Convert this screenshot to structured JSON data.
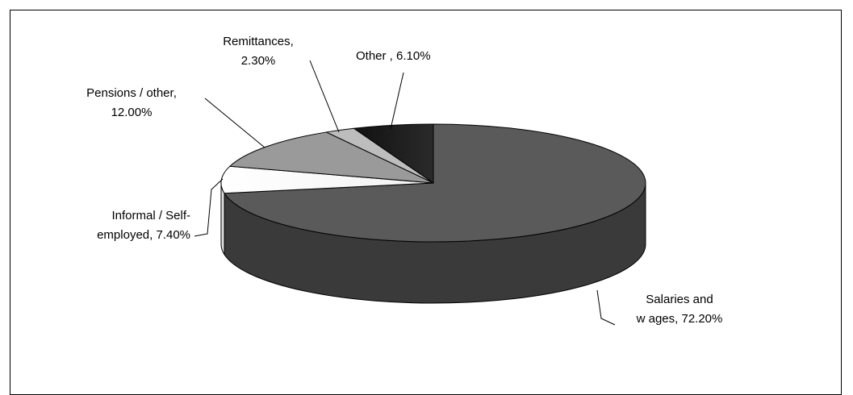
{
  "chart_data": {
    "type": "pie",
    "title": "",
    "three_d": true,
    "slices": [
      {
        "label_lines": [
          "Salaries and",
          "w ages, 72.20%"
        ],
        "name": "Salaries and wages",
        "value": 72.2,
        "color": "#5a5a5a"
      },
      {
        "label_lines": [
          "Informal / Self-",
          "employed, 7.40%"
        ],
        "name": "Informal / Self-employed",
        "value": 7.4,
        "color": "#ffffff"
      },
      {
        "label_lines": [
          "Pensions / other,",
          "12.00%"
        ],
        "name": "Pensions / other",
        "value": 12.0,
        "color": "#9a9a9a"
      },
      {
        "label_lines": [
          "Remittances,",
          "2.30%"
        ],
        "name": "Remittances",
        "value": 2.3,
        "color": "#bdbdbd"
      },
      {
        "label_lines": [
          "Other , 6.10%"
        ],
        "name": "Other",
        "value": 6.1,
        "color": "#111111"
      }
    ]
  }
}
